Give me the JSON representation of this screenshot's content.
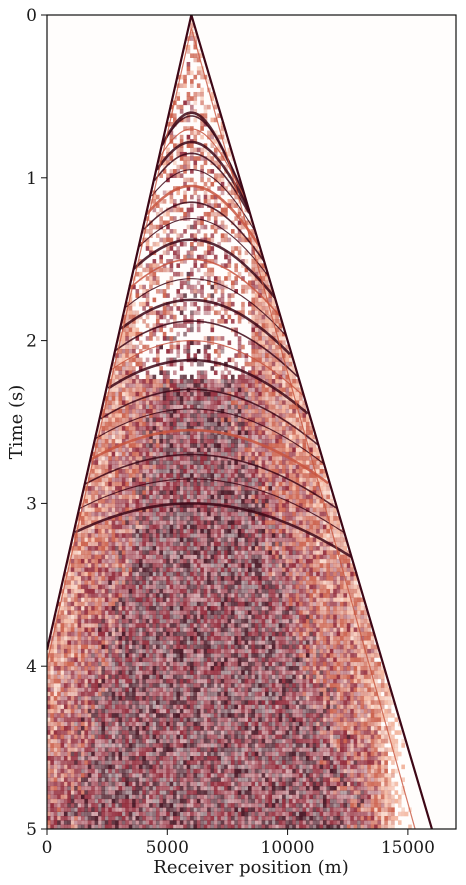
{
  "chart_data": {
    "type": "heatmap",
    "title": "",
    "xlabel": "Receiver position (m)",
    "ylabel": "Time (s)",
    "xlim": [
      0,
      17000
    ],
    "ylim": [
      5,
      0
    ],
    "x_ticks": [
      0,
      5000,
      10000,
      15000
    ],
    "x_tick_labels": [
      "0",
      "5000",
      "10000",
      "15000"
    ],
    "y_ticks": [
      0,
      1,
      2,
      3,
      4,
      5
    ],
    "y_tick_labels": [
      "0",
      "1",
      "2",
      "3",
      "4",
      "5"
    ],
    "source_position": 6000,
    "first_arrival": {
      "apex_time": 0.0,
      "left_edge_time_at_x0": 3.9,
      "right_edge_position_at_t5": 16000
    },
    "reflection_apices": [
      0.6,
      0.62,
      0.7,
      0.78,
      0.85,
      0.95,
      1.05,
      1.15,
      1.25,
      1.38,
      1.5,
      1.62,
      1.75,
      1.88,
      2.0,
      2.12,
      2.3,
      2.42,
      2.55,
      2.7,
      2.85,
      3.0
    ],
    "colormap": [
      "#ffffff",
      "#fbe6df",
      "#f0a98f",
      "#c8553f",
      "#8a1b2c",
      "#3d0716"
    ],
    "grid": false,
    "legend": "none"
  }
}
